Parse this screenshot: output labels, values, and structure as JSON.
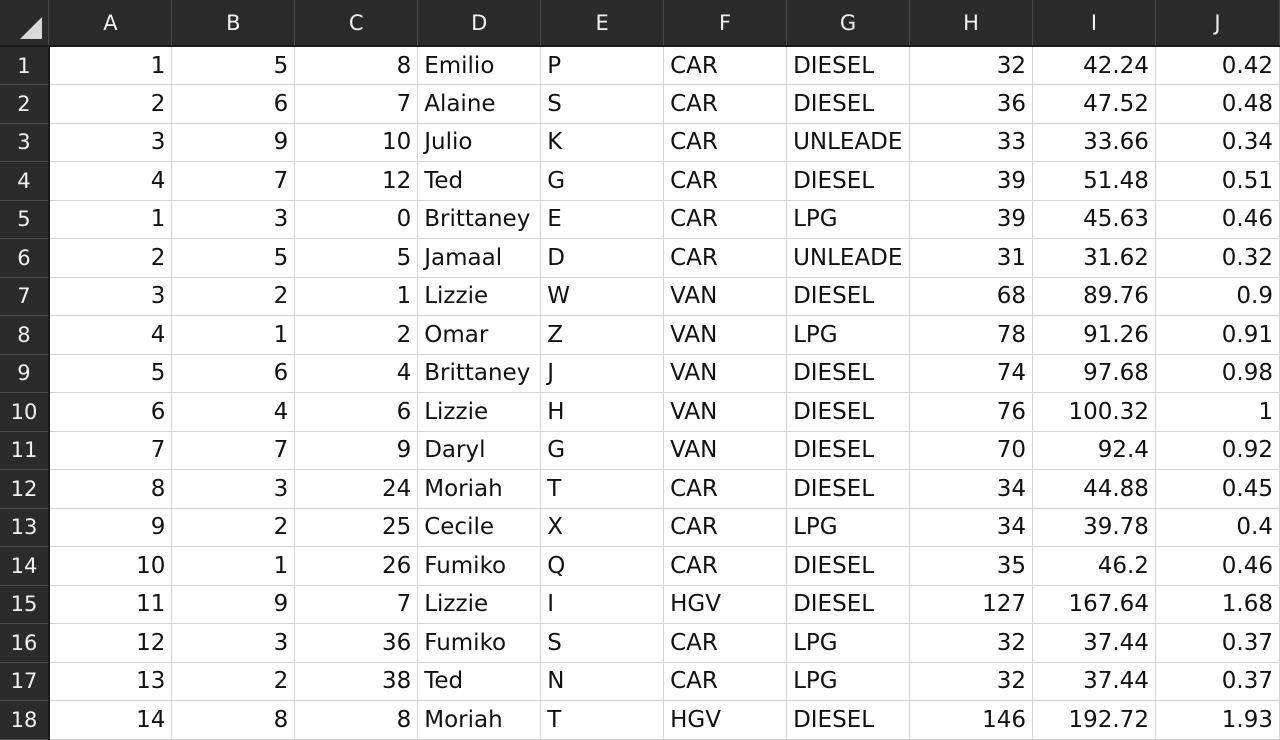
{
  "columns": [
    "A",
    "B",
    "C",
    "D",
    "E",
    "F",
    "G",
    "H",
    "I",
    "J"
  ],
  "rows": [
    {
      "n": "1",
      "cells": [
        "1",
        "5",
        "8",
        "Emilio",
        "P",
        "CAR",
        "DIESEL",
        "32",
        "42.24",
        "0.42"
      ]
    },
    {
      "n": "2",
      "cells": [
        "2",
        "6",
        "7",
        "Alaine",
        "S",
        "CAR",
        "DIESEL",
        "36",
        "47.52",
        "0.48"
      ]
    },
    {
      "n": "3",
      "cells": [
        "3",
        "9",
        "10",
        "Julio",
        "K",
        "CAR",
        "UNLEADE",
        "33",
        "33.66",
        "0.34"
      ]
    },
    {
      "n": "4",
      "cells": [
        "4",
        "7",
        "12",
        "Ted",
        "G",
        "CAR",
        "DIESEL",
        "39",
        "51.48",
        "0.51"
      ]
    },
    {
      "n": "5",
      "cells": [
        "1",
        "3",
        "0",
        "Brittaney",
        "E",
        "CAR",
        "LPG",
        "39",
        "45.63",
        "0.46"
      ]
    },
    {
      "n": "6",
      "cells": [
        "2",
        "5",
        "5",
        "Jamaal",
        "D",
        "CAR",
        "UNLEADE",
        "31",
        "31.62",
        "0.32"
      ]
    },
    {
      "n": "7",
      "cells": [
        "3",
        "2",
        "1",
        "Lizzie",
        "W",
        "VAN",
        "DIESEL",
        "68",
        "89.76",
        "0.9"
      ]
    },
    {
      "n": "8",
      "cells": [
        "4",
        "1",
        "2",
        "Omar",
        "Z",
        "VAN",
        "LPG",
        "78",
        "91.26",
        "0.91"
      ]
    },
    {
      "n": "9",
      "cells": [
        "5",
        "6",
        "4",
        "Brittaney",
        "J",
        "VAN",
        "DIESEL",
        "74",
        "97.68",
        "0.98"
      ]
    },
    {
      "n": "10",
      "cells": [
        "6",
        "4",
        "6",
        "Lizzie",
        "H",
        "VAN",
        "DIESEL",
        "76",
        "100.32",
        "1"
      ]
    },
    {
      "n": "11",
      "cells": [
        "7",
        "7",
        "9",
        "Daryl",
        "G",
        "VAN",
        "DIESEL",
        "70",
        "92.4",
        "0.92"
      ]
    },
    {
      "n": "12",
      "cells": [
        "8",
        "3",
        "24",
        "Moriah",
        "T",
        "CAR",
        "DIESEL",
        "34",
        "44.88",
        "0.45"
      ]
    },
    {
      "n": "13",
      "cells": [
        "9",
        "2",
        "25",
        "Cecile",
        "X",
        "CAR",
        "LPG",
        "34",
        "39.78",
        "0.4"
      ]
    },
    {
      "n": "14",
      "cells": [
        "10",
        "1",
        "26",
        "Fumiko",
        "Q",
        "CAR",
        "DIESEL",
        "35",
        "46.2",
        "0.46"
      ]
    },
    {
      "n": "15",
      "cells": [
        "11",
        "9",
        "7",
        "Lizzie",
        "I",
        "HGV",
        "DIESEL",
        "127",
        "167.64",
        "1.68"
      ]
    },
    {
      "n": "16",
      "cells": [
        "12",
        "3",
        "36",
        "Fumiko",
        "S",
        "CAR",
        "LPG",
        "32",
        "37.44",
        "0.37"
      ]
    },
    {
      "n": "17",
      "cells": [
        "13",
        "2",
        "38",
        "Ted",
        "N",
        "CAR",
        "LPG",
        "32",
        "37.44",
        "0.37"
      ]
    },
    {
      "n": "18",
      "cells": [
        "14",
        "8",
        "8",
        "Moriah",
        "T",
        "HGV",
        "DIESEL",
        "146",
        "192.72",
        "1.93"
      ]
    }
  ]
}
